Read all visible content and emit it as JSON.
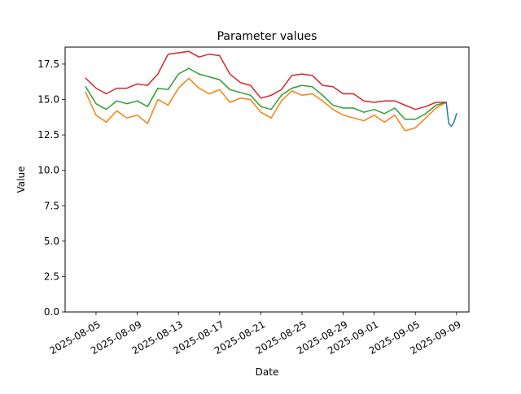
{
  "chart_data": {
    "type": "line",
    "title": "Parameter values",
    "xlabel": "Date",
    "ylabel": "Value",
    "xlim": [
      "2025-08-02",
      "2025-09-10"
    ],
    "ylim": [
      0,
      18.7
    ],
    "x_ticks": [
      "2025-08-05",
      "2025-08-09",
      "2025-08-13",
      "2025-08-17",
      "2025-08-21",
      "2025-08-25",
      "2025-08-29",
      "2025-09-01",
      "2025-09-05",
      "2025-09-09"
    ],
    "y_ticks": [
      0.0,
      2.5,
      5.0,
      7.5,
      10.0,
      12.5,
      15.0,
      17.5
    ],
    "y_tick_labels": [
      "0.0",
      "2.5",
      "5.0",
      "7.5",
      "10.0",
      "12.5",
      "15.0",
      "17.5"
    ],
    "grid": false,
    "legend": "none",
    "x": [
      "2025-08-04",
      "2025-08-05",
      "2025-08-06",
      "2025-08-07",
      "2025-08-08",
      "2025-08-09",
      "2025-08-10",
      "2025-08-11",
      "2025-08-12",
      "2025-08-13",
      "2025-08-14",
      "2025-08-15",
      "2025-08-16",
      "2025-08-17",
      "2025-08-18",
      "2025-08-19",
      "2025-08-20",
      "2025-08-21",
      "2025-08-22",
      "2025-08-23",
      "2025-08-24",
      "2025-08-25",
      "2025-08-26",
      "2025-08-27",
      "2025-08-28",
      "2025-08-29",
      "2025-08-30",
      "2025-08-31",
      "2025-09-01",
      "2025-09-02",
      "2025-09-03",
      "2025-09-04",
      "2025-09-05",
      "2025-09-06",
      "2025-09-07",
      "2025-09-08"
    ],
    "series": [
      {
        "color": "#ff7f0e",
        "values": [
          15.5,
          13.9,
          13.4,
          14.2,
          13.7,
          13.9,
          13.3,
          15.0,
          14.6,
          15.8,
          16.5,
          15.8,
          15.4,
          15.7,
          14.8,
          15.1,
          15.0,
          14.1,
          13.7,
          14.9,
          15.6,
          15.3,
          15.4,
          14.9,
          14.3,
          13.9,
          13.7,
          13.5,
          13.9,
          13.4,
          13.9,
          12.8,
          13.0,
          13.7,
          14.4,
          14.8
        ]
      },
      {
        "color": "#2ca02c",
        "values": [
          15.9,
          14.7,
          14.3,
          14.9,
          14.7,
          14.9,
          14.5,
          15.8,
          15.7,
          16.8,
          17.2,
          16.8,
          16.6,
          16.4,
          15.7,
          15.5,
          15.3,
          14.5,
          14.3,
          15.3,
          15.8,
          16.0,
          15.9,
          15.3,
          14.6,
          14.4,
          14.4,
          14.1,
          14.3,
          14.0,
          14.4,
          13.6,
          13.6,
          14.0,
          14.6,
          14.8
        ]
      },
      {
        "color": "#d62728",
        "values": [
          16.5,
          15.8,
          15.4,
          15.8,
          15.8,
          16.1,
          16.0,
          16.8,
          18.2,
          18.3,
          18.4,
          18.0,
          18.2,
          18.1,
          16.8,
          16.2,
          16.0,
          15.1,
          15.3,
          15.7,
          16.7,
          16.8,
          16.7,
          16.0,
          15.9,
          15.4,
          15.4,
          14.9,
          14.8,
          14.9,
          14.9,
          14.6,
          14.3,
          14.5,
          14.8,
          14.8
        ]
      },
      {
        "color": "#1f77b4",
        "x": [
          "2025-09-08",
          "2025-09-08 06:00",
          "2025-09-08 12:00",
          "2025-09-08 18:00",
          "2025-09-09"
        ],
        "values": [
          14.8,
          13.3,
          13.1,
          13.4,
          14.0
        ]
      }
    ]
  }
}
